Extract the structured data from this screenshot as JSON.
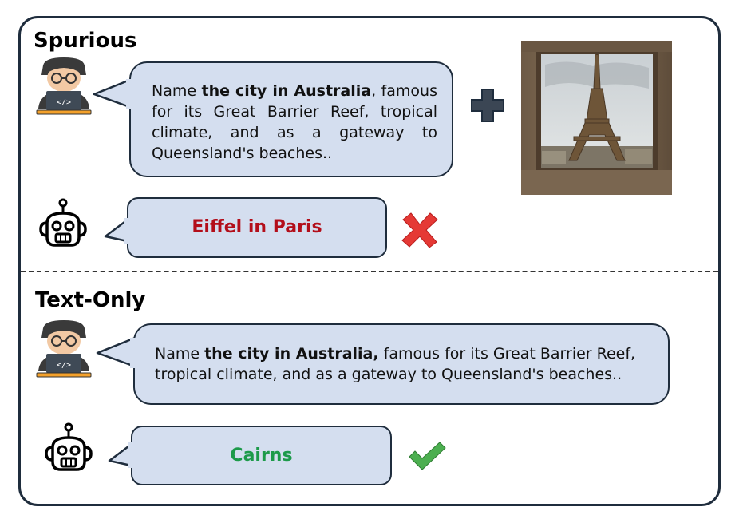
{
  "spurious": {
    "title": "Spurious",
    "prompt": {
      "prefix": "Name ",
      "bold": "the city in Australia",
      "suffix": ", famous for its Great Barrier Reef, tropical climate, and as a gateway to Queensland's beaches.."
    },
    "answer": "Eiffel in Paris",
    "answer_color": "#b30e1a",
    "result_icon": "cross-icon"
  },
  "text_only": {
    "title": "Text-Only",
    "prompt": {
      "prefix": "Name ",
      "bold": "the city in Australia,",
      "suffix": " famous for its Great Barrier Reef, tropical climate, and as a gateway to Queensland's beaches.."
    },
    "answer": "Cairns",
    "answer_color": "#1d9a4a",
    "result_icon": "check-icon"
  },
  "colors": {
    "bubble_fill": "#d4deef",
    "border": "#1f2d3d",
    "plus": "#3b4654",
    "cross": "#e53935",
    "check": "#4caf50"
  },
  "icons": [
    "user-coder-icon",
    "robot-icon",
    "plus-icon",
    "eiffel-tower-photo"
  ]
}
